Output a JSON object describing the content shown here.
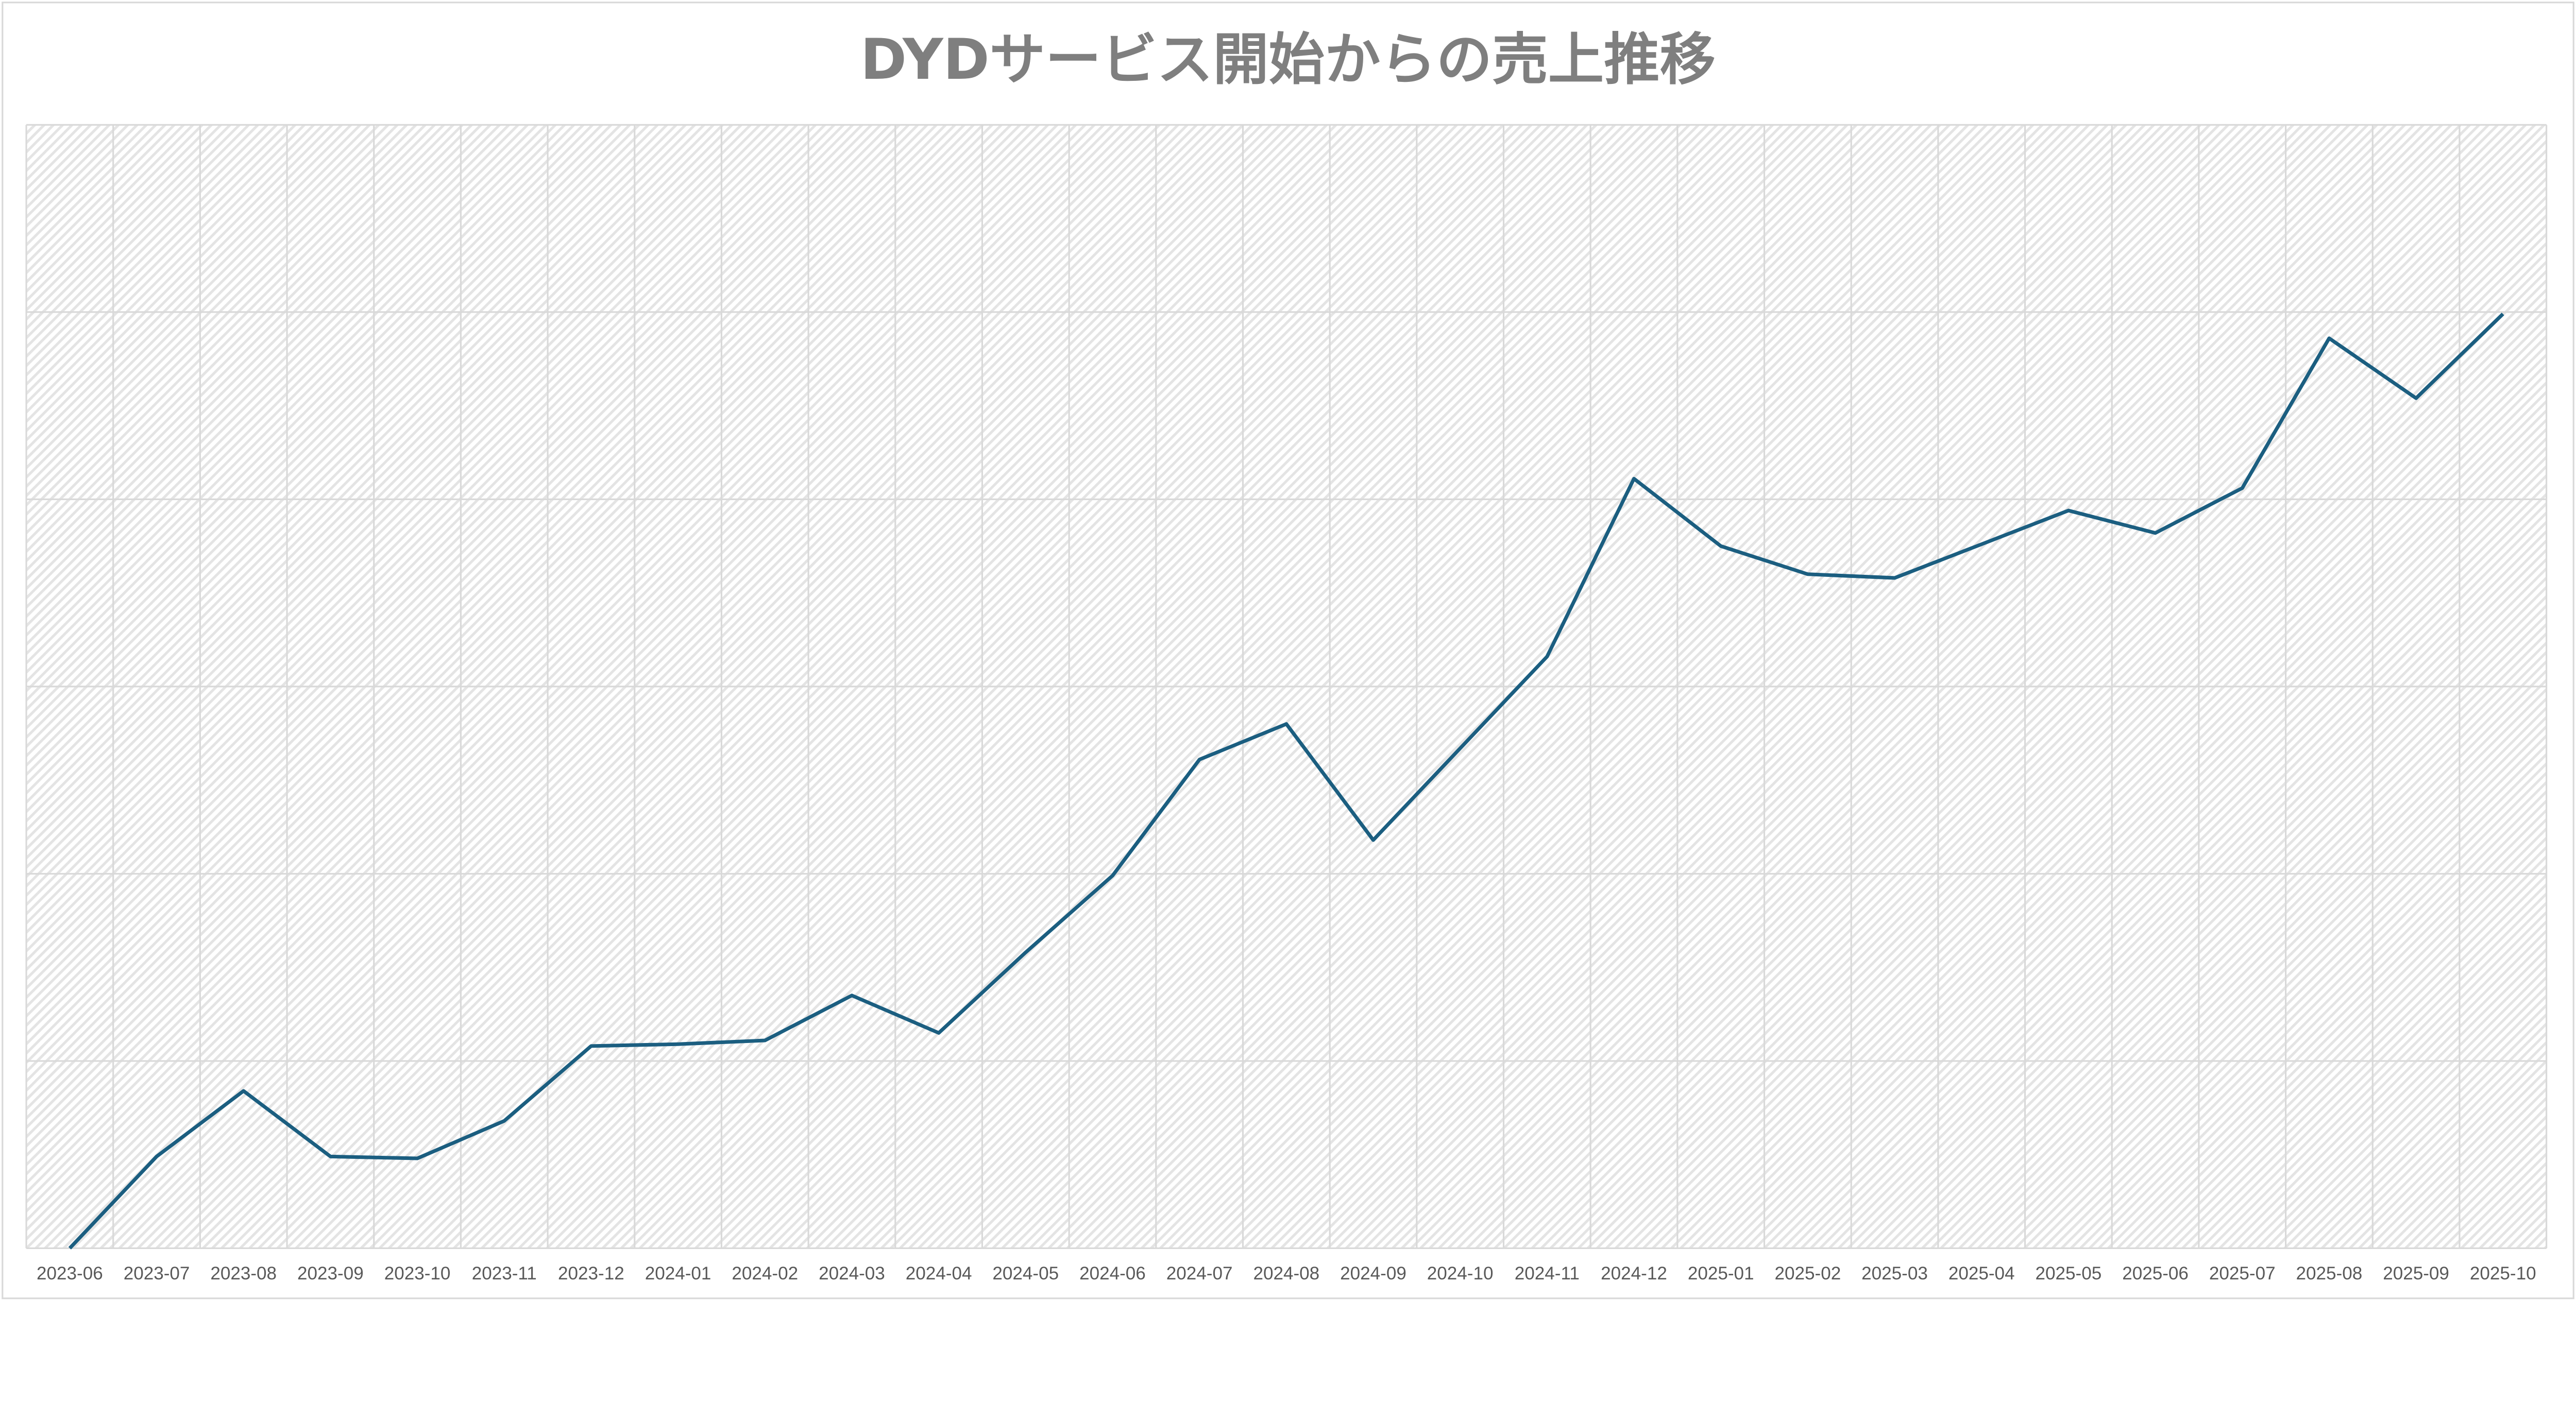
{
  "chart_data": {
    "type": "line",
    "title": "DYDサービス開始からの売上推移",
    "xlabel": "",
    "ylabel": "",
    "y_tick_labels_shown": false,
    "y_units_note": "no y-axis labels printed; values expressed in gridline intervals",
    "ylim": [
      0,
      6
    ],
    "grid": {
      "horizontal": true,
      "vertical": true
    },
    "plot_background": "diagonal hatch, light gray",
    "categories": [
      "2023-06",
      "2023-07",
      "2023-08",
      "2023-09",
      "2023-10",
      "2023-11",
      "2023-12",
      "2024-01",
      "2024-02",
      "2024-03",
      "2024-04",
      "2024-05",
      "2024-06",
      "2024-07",
      "2024-08",
      "2024-09",
      "2024-10",
      "2024-11",
      "2024-12",
      "2025-01",
      "2025-02",
      "2025-03",
      "2025-04",
      "2025-05",
      "2025-06",
      "2025-07",
      "2025-08",
      "2025-09",
      "2025-10"
    ],
    "series": [
      {
        "values": [
          0,
          0.49,
          0.84,
          0.49,
          0.48,
          0.68,
          1.08,
          1.09,
          1.11,
          1.35,
          1.15,
          1.58,
          1.99,
          2.61,
          2.8,
          2.18,
          2.67,
          3.16,
          4.11,
          3.75,
          3.6,
          3.58,
          3.76,
          3.94,
          3.82,
          4.06,
          4.86,
          4.54,
          4.99
        ],
        "color": "#1b5e80"
      }
    ],
    "colors": {
      "title": "#7f7f7f",
      "line": "#1b5e80",
      "grid": "#d9d9d9",
      "tick_text": "#595959"
    }
  }
}
